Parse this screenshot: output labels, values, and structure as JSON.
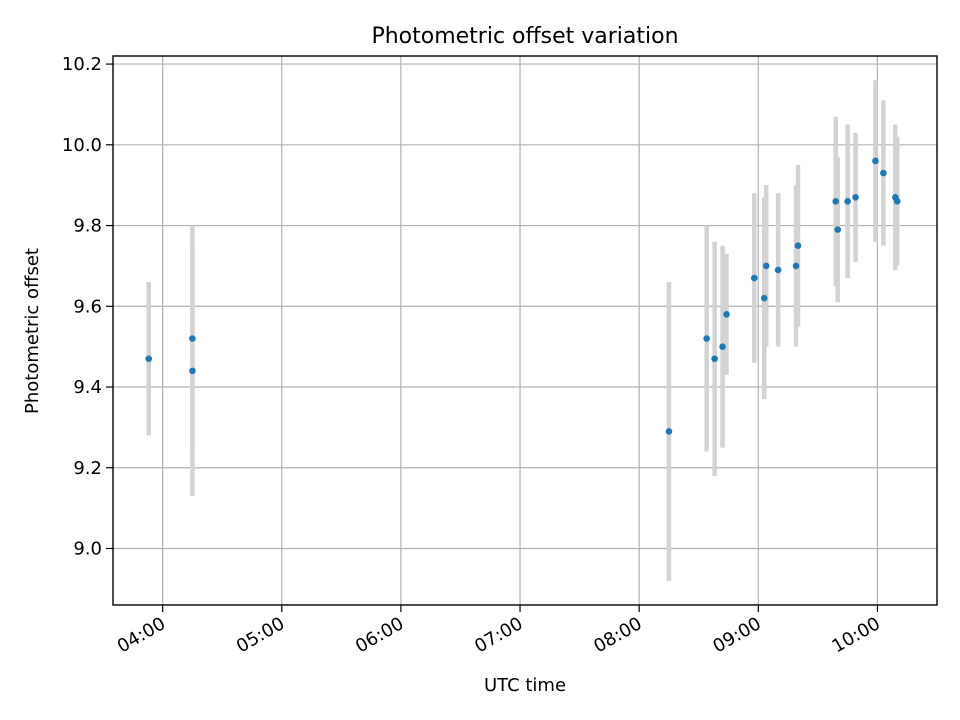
{
  "chart_data": {
    "type": "scatter",
    "title": "Photometric offset variation",
    "xlabel": "UTC time",
    "ylabel": "Photometric offset",
    "x_tick_labels": [
      "04:00",
      "05:00",
      "06:00",
      "07:00",
      "08:00",
      "09:00",
      "10:00"
    ],
    "y_tick_labels": [
      "9.0",
      "9.2",
      "9.4",
      "9.6",
      "9.8",
      "10.0",
      "10.2"
    ],
    "xlim": [
      "03:35",
      "10:30"
    ],
    "ylim": [
      8.86,
      10.22
    ],
    "grid": true,
    "colors": {
      "marker": "#1f77b4",
      "errorbar": "#d3d3d3",
      "grid": "#b0b0b0"
    },
    "series": [
      {
        "points": [
          {
            "x": "03:53",
            "y": 9.47,
            "err": 0.19
          },
          {
            "x": "04:15",
            "y": 9.52,
            "err": 0.28
          },
          {
            "x": "04:15",
            "y": 9.44,
            "err": 0.31
          },
          {
            "x": "08:15",
            "y": 9.29,
            "err": 0.37
          },
          {
            "x": "08:34",
            "y": 9.52,
            "err": 0.28
          },
          {
            "x": "08:38",
            "y": 9.47,
            "err": 0.29
          },
          {
            "x": "08:42",
            "y": 9.5,
            "err": 0.25
          },
          {
            "x": "08:44",
            "y": 9.58,
            "err": 0.15
          },
          {
            "x": "08:58",
            "y": 9.67,
            "err": 0.21
          },
          {
            "x": "09:03",
            "y": 9.62,
            "err": 0.25
          },
          {
            "x": "09:04",
            "y": 9.7,
            "err": 0.2
          },
          {
            "x": "09:10",
            "y": 9.69,
            "err": 0.19
          },
          {
            "x": "09:19",
            "y": 9.7,
            "err": 0.2
          },
          {
            "x": "09:20",
            "y": 9.75,
            "err": 0.2
          },
          {
            "x": "09:39",
            "y": 9.86,
            "err": 0.21
          },
          {
            "x": "09:40",
            "y": 9.79,
            "err": 0.18
          },
          {
            "x": "09:45",
            "y": 9.86,
            "err": 0.19
          },
          {
            "x": "09:49",
            "y": 9.87,
            "err": 0.16
          },
          {
            "x": "09:59",
            "y": 9.96,
            "err": 0.2
          },
          {
            "x": "10:03",
            "y": 9.93,
            "err": 0.18
          },
          {
            "x": "10:09",
            "y": 9.87,
            "err": 0.18
          },
          {
            "x": "10:10",
            "y": 9.86,
            "err": 0.16
          }
        ]
      }
    ]
  }
}
